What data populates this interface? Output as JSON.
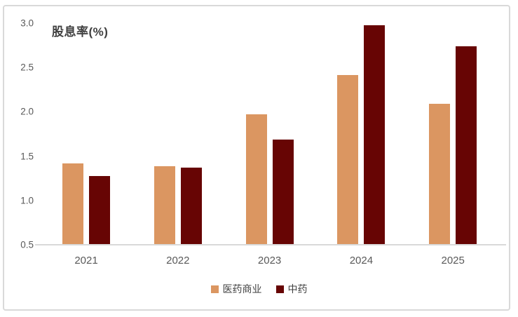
{
  "chart_data": {
    "type": "bar",
    "title": "股息率(%)",
    "categories": [
      "2021",
      "2022",
      "2023",
      "2024",
      "2025"
    ],
    "series": [
      {
        "name": "医药商业",
        "color": "#db9661",
        "values": [
          1.41,
          1.38,
          1.96,
          2.41,
          2.08
        ]
      },
      {
        "name": "中药",
        "color": "#670504",
        "values": [
          1.27,
          1.36,
          1.68,
          2.97,
          2.73
        ]
      }
    ],
    "xlabel": "",
    "ylabel": "",
    "ylim": [
      0.5,
      3.0
    ],
    "yticks": [
      "3.0",
      "2.5",
      "2.0",
      "1.5",
      "1.0",
      "0.5"
    ],
    "grid": false,
    "legend_position": "bottom-center",
    "axis_color": "#d9d9d9",
    "tick_label_color": "#595959",
    "title_color": "#404040",
    "frame_border_color": "#d9d9d9",
    "background_color": "#ffffff"
  }
}
